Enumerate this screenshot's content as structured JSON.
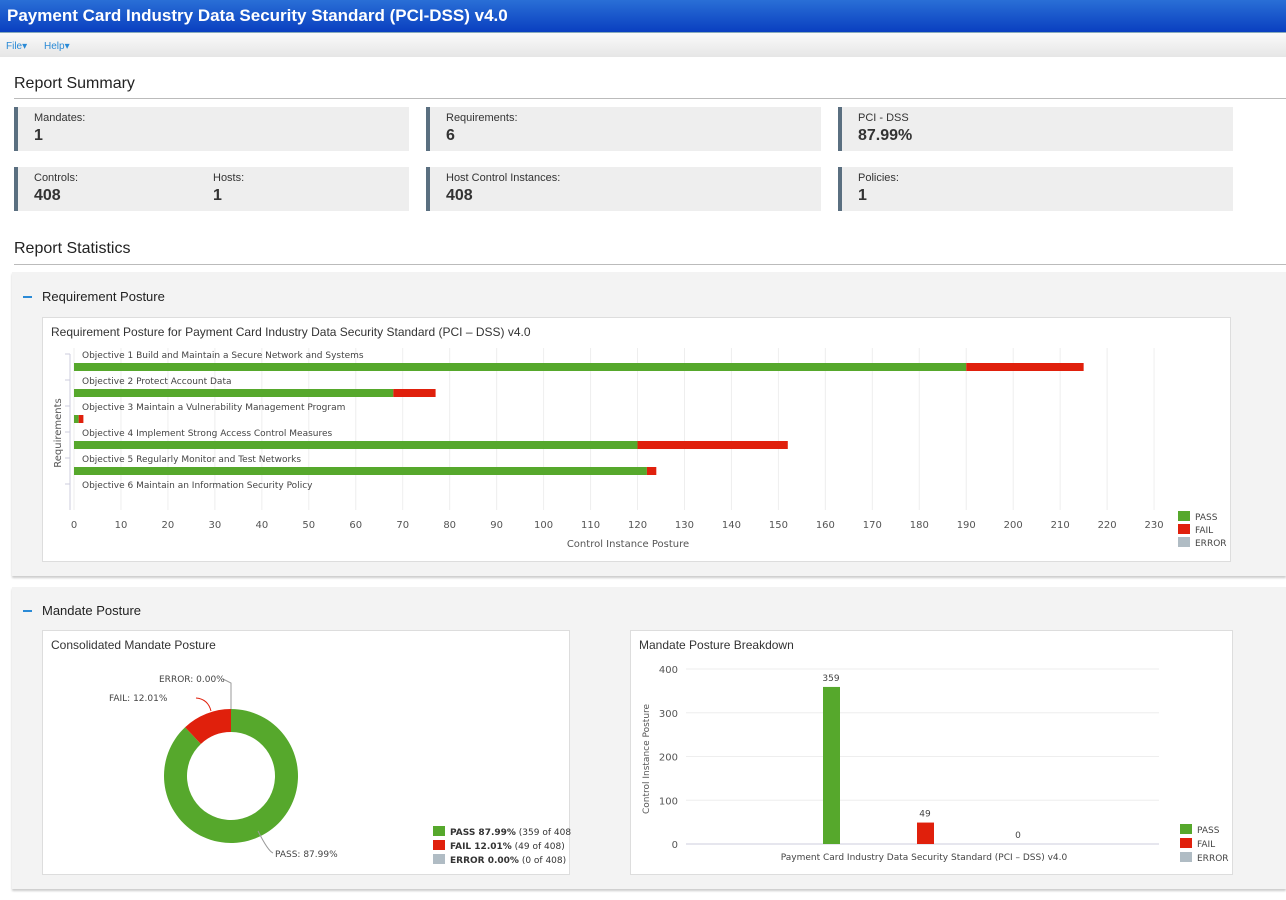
{
  "title": "Payment Card Industry Data Security Standard (PCI-DSS) v4.0",
  "menu": {
    "file": "File▾",
    "help": "Help▾"
  },
  "summary": {
    "heading": "Report Summary",
    "mandates": {
      "label": "Mandates:",
      "value": "1"
    },
    "requirements": {
      "label": "Requirements:",
      "value": "6"
    },
    "pci": {
      "label": "PCI - DSS",
      "value": "87.99%"
    },
    "controls": {
      "label": "Controls:",
      "value": "408"
    },
    "hosts": {
      "label": "Hosts:",
      "value": "1"
    },
    "hci": {
      "label": "Host Control Instances:",
      "value": "408"
    },
    "policies": {
      "label": "Policies:",
      "value": "1"
    }
  },
  "stats": {
    "heading": "Report Statistics",
    "req_section": "Requirement Posture",
    "mandate_section": "Mandate Posture"
  },
  "colors": {
    "pass": "#56a82c",
    "fail": "#e0200c",
    "error": "#b0bcc4"
  },
  "chart_data": [
    {
      "type": "bar",
      "orientation": "horizontal",
      "stacked": true,
      "title": "Requirement Posture for Payment Card Industry Data Security Standard (PCI – DSS) v4.0",
      "xlabel": "Control Instance Posture",
      "ylabel": "Requirements",
      "xlim": [
        0,
        235
      ],
      "xticks": [
        0,
        10,
        20,
        30,
        40,
        50,
        60,
        70,
        80,
        90,
        100,
        110,
        120,
        130,
        140,
        150,
        160,
        170,
        180,
        190,
        200,
        210,
        220,
        230
      ],
      "categories": [
        "Objective 1 Build and Maintain a Secure Network and Systems",
        "Objective 2 Protect Account Data",
        "Objective 3 Maintain a Vulnerability Management Program",
        "Objective 4 Implement Strong Access Control Measures",
        "Objective 5 Regularly Monitor and Test Networks",
        "Objective 6 Maintain an Information Security Policy"
      ],
      "series": [
        {
          "name": "PASS",
          "values": [
            190,
            68,
            1,
            120,
            122,
            0
          ]
        },
        {
          "name": "FAIL",
          "values": [
            25,
            9,
            1,
            32,
            2,
            0
          ]
        },
        {
          "name": "ERROR",
          "values": [
            0,
            0,
            0,
            0,
            0,
            0
          ]
        }
      ],
      "legend": [
        "PASS",
        "FAIL",
        "ERROR"
      ]
    },
    {
      "type": "pie",
      "title": "Consolidated Mandate Posture",
      "donut": true,
      "slices": [
        {
          "name": "PASS",
          "value": 87.99,
          "label": "PASS: 87.99%"
        },
        {
          "name": "FAIL",
          "value": 12.01,
          "label": "FAIL: 12.01%"
        },
        {
          "name": "ERROR",
          "value": 0,
          "label": "ERROR: 0.00%"
        }
      ],
      "legend": [
        {
          "bold": "PASS 87.99%",
          "rest": " (359 of 408)"
        },
        {
          "bold": "FAIL 12.01%",
          "rest": " (49 of 408)"
        },
        {
          "bold": "ERROR 0.00%",
          "rest": " (0 of 408)"
        }
      ]
    },
    {
      "type": "bar",
      "title": "Mandate Posture Breakdown",
      "ylabel": "Control Instance Posture",
      "xlabel": "Payment Card Industry Data Security Standard (PCI – DSS) v4.0",
      "ylim": [
        0,
        400
      ],
      "yticks": [
        0,
        100,
        200,
        300,
        400
      ],
      "series": [
        {
          "name": "PASS",
          "value": 359
        },
        {
          "name": "FAIL",
          "value": 49
        },
        {
          "name": "ERROR",
          "value": 0
        }
      ],
      "legend": [
        "PASS",
        "FAIL",
        "ERROR"
      ]
    }
  ]
}
